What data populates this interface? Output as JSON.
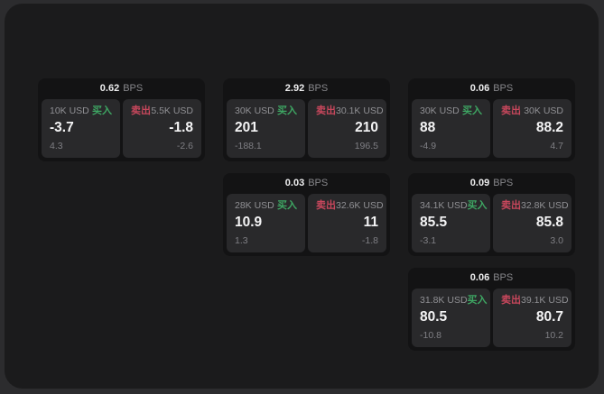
{
  "labels": {
    "bps": "BPS",
    "buy": "买入",
    "sell": "卖出"
  },
  "colors": {
    "backdrop": "#2c2c2e",
    "window_bg": "#1b1b1c",
    "card_bg": "#131314",
    "panel_bg": "#29292b",
    "buy_green": "#3ea663",
    "sell_red": "#c8475c",
    "value_text": "#f4f4f5",
    "muted_text": "#8a8a8e"
  },
  "cards": [
    {
      "bps": "0.62",
      "buy": {
        "size": "10K USD",
        "value": "-3.7",
        "sub": "4.3"
      },
      "sell": {
        "size": "5.5K USD",
        "value": "-1.8",
        "sub": "-2.6"
      }
    },
    {
      "bps": "2.92",
      "buy": {
        "size": "30K USD",
        "value": "201",
        "sub": "-188.1"
      },
      "sell": {
        "size": "30.1K USD",
        "value": "210",
        "sub": "196.5"
      }
    },
    {
      "bps": "0.06",
      "buy": {
        "size": "30K USD",
        "value": "88",
        "sub": "-4.9"
      },
      "sell": {
        "size": "30K USD",
        "value": "88.2",
        "sub": "4.7"
      }
    },
    {
      "bps": "0.03",
      "buy": {
        "size": "28K USD",
        "value": "10.9",
        "sub": "1.3"
      },
      "sell": {
        "size": "32.6K USD",
        "value": "11",
        "sub": "-1.8"
      }
    },
    {
      "bps": "0.09",
      "buy": {
        "size": "34.1K USD",
        "value": "85.5",
        "sub": "-3.1"
      },
      "sell": {
        "size": "32.8K USD",
        "value": "85.8",
        "sub": "3.0"
      }
    },
    {
      "bps": "0.06",
      "buy": {
        "size": "31.8K USD",
        "value": "80.5",
        "sub": "-10.8"
      },
      "sell": {
        "size": "39.1K USD",
        "value": "80.7",
        "sub": "10.2"
      }
    }
  ]
}
